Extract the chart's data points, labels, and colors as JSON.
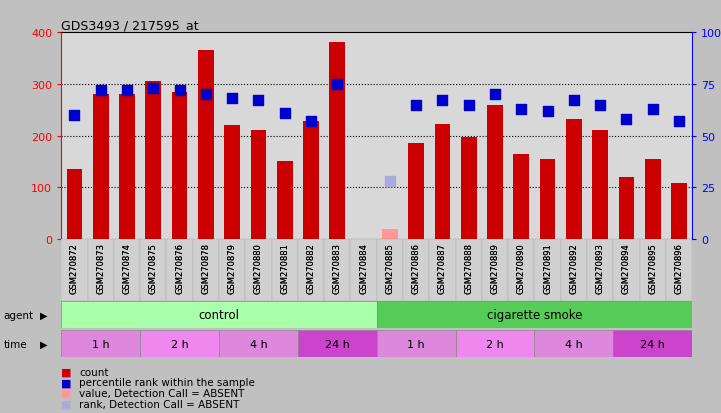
{
  "title": "GDS3493 / 217595_at",
  "samples": [
    "GSM270872",
    "GSM270873",
    "GSM270874",
    "GSM270875",
    "GSM270876",
    "GSM270878",
    "GSM270879",
    "GSM270880",
    "GSM270881",
    "GSM270882",
    "GSM270883",
    "GSM270884",
    "GSM270885",
    "GSM270886",
    "GSM270887",
    "GSM270888",
    "GSM270889",
    "GSM270890",
    "GSM270891",
    "GSM270892",
    "GSM270893",
    "GSM270894",
    "GSM270895",
    "GSM270896"
  ],
  "counts": [
    135,
    280,
    280,
    305,
    285,
    365,
    220,
    210,
    150,
    228,
    380,
    0,
    20,
    185,
    222,
    198,
    260,
    165,
    155,
    232,
    210,
    120,
    155,
    108
  ],
  "percentile_ranks": [
    60,
    72,
    72,
    73,
    72,
    70,
    68,
    67,
    61,
    57,
    75,
    0,
    28,
    65,
    67,
    65,
    70,
    63,
    62,
    67,
    65,
    58,
    63,
    57
  ],
  "is_absent": [
    false,
    false,
    false,
    false,
    false,
    false,
    false,
    false,
    false,
    false,
    false,
    false,
    true,
    false,
    false,
    false,
    false,
    false,
    false,
    false,
    false,
    false,
    false,
    false
  ],
  "bar_color_present": "#cc0000",
  "bar_color_absent": "#ff9999",
  "rank_color_present": "#0000cc",
  "rank_color_absent": "#aaaadd",
  "ylim_left": [
    0,
    400
  ],
  "ylim_right": [
    0,
    100
  ],
  "yticks_left": [
    0,
    100,
    200,
    300,
    400
  ],
  "yticks_right": [
    0,
    25,
    50,
    75,
    100
  ],
  "outer_bg": "#c0c0c0",
  "plot_bg": "#d8d8d8",
  "xtick_bg": "#c8c8c8",
  "agent_control_color": "#aaffaa",
  "agent_smoke_color": "#55cc55",
  "time_colors": [
    "#dd88dd",
    "#ee88ee",
    "#dd88dd",
    "#cc44cc",
    "#dd88dd",
    "#ee88ee",
    "#dd88dd",
    "#cc44cc"
  ],
  "time_labels": [
    "1 h",
    "2 h",
    "4 h",
    "24 h",
    "1 h",
    "2 h",
    "4 h",
    "24 h"
  ],
  "legend_items": [
    {
      "label": "count",
      "color": "#cc0000"
    },
    {
      "label": "percentile rank within the sample",
      "color": "#0000cc"
    },
    {
      "label": "value, Detection Call = ABSENT",
      "color": "#ff9999"
    },
    {
      "label": "rank, Detection Call = ABSENT",
      "color": "#aaaadd"
    }
  ]
}
